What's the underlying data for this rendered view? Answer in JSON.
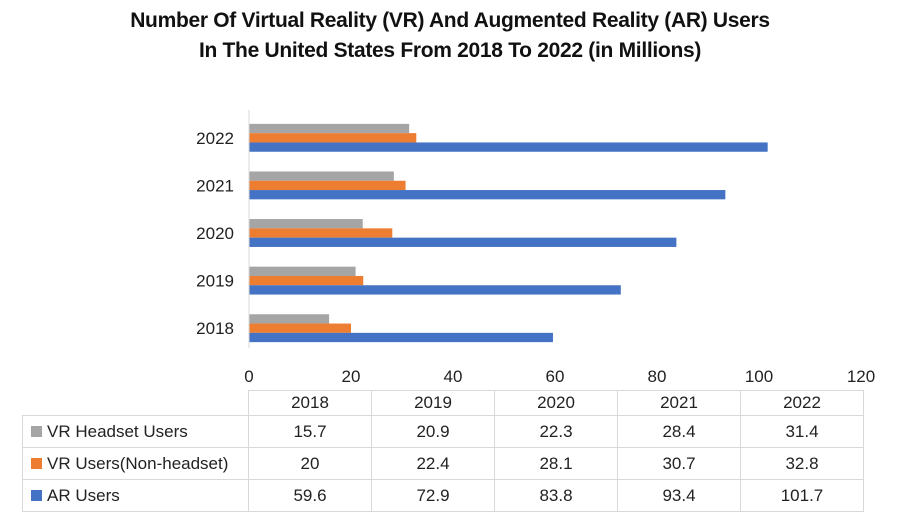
{
  "chart_data": {
    "type": "bar",
    "orientation": "horizontal",
    "title": "Number Of Virtual Reality (VR) And Augmented Reality (AR) Users In The United States From 2018 To 2022 (in Millions)",
    "title_lines": [
      "Number Of Virtual Reality (VR) And Augmented Reality (AR) Users",
      "In The United States From 2018 To 2022 (in Millions)"
    ],
    "categories": [
      "2018",
      "2019",
      "2020",
      "2021",
      "2022"
    ],
    "series": [
      {
        "name": "VR Headset Users",
        "color": "#A5A5A5",
        "values": [
          15.7,
          20.9,
          22.3,
          28.4,
          31.4
        ]
      },
      {
        "name": "VR Users(Non-headset)",
        "color": "#ED7D31",
        "values": [
          20,
          22.4,
          28.1,
          30.7,
          32.8
        ]
      },
      {
        "name": "AR Users",
        "color": "#4472C4",
        "values": [
          59.6,
          72.9,
          83.8,
          93.4,
          101.7
        ]
      }
    ],
    "xlabel": "",
    "ylabel": "",
    "xlim": [
      0,
      120
    ],
    "x_ticks": [
      "0",
      "20",
      "40",
      "60",
      "80",
      "100",
      "120"
    ],
    "grid": false,
    "legend": "data-table-below"
  }
}
